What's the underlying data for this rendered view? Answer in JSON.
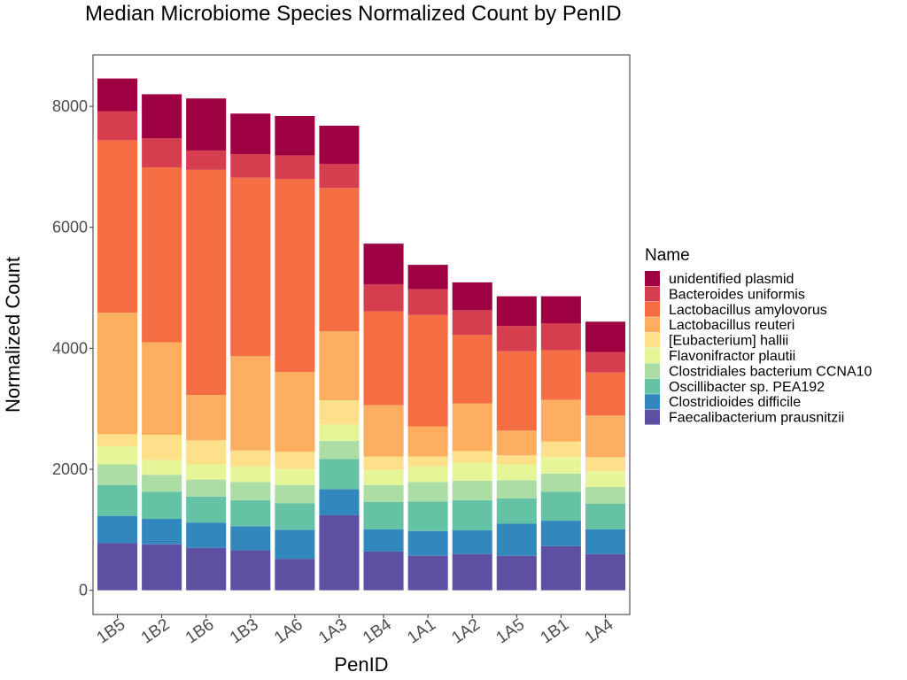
{
  "chart_data": {
    "type": "bar",
    "stacked": true,
    "title": "Median Microbiome Species Normalized Count by PenID",
    "xlabel": "PenID",
    "ylabel": "Normalized Count",
    "ylim": [
      -400,
      8850
    ],
    "yticks": [
      0,
      2000,
      4000,
      6000,
      8000
    ],
    "grid": false,
    "legend_title": "Name",
    "legend_position": "right",
    "categories": [
      "1B5",
      "1B2",
      "1B6",
      "1B3",
      "1A6",
      "1A3",
      "1B4",
      "1A1",
      "1A2",
      "1A5",
      "1B1",
      "1A4"
    ],
    "series": [
      {
        "name": "Faecalibacterium prausnitzii",
        "color": "#5E4FA2",
        "values": [
          780,
          760,
          700,
          660,
          520,
          1240,
          640,
          570,
          600,
          570,
          730,
          600
        ]
      },
      {
        "name": "Clostridioides difficile",
        "color": "#3288BD",
        "values": [
          450,
          420,
          420,
          400,
          480,
          430,
          370,
          410,
          390,
          530,
          420,
          410
        ]
      },
      {
        "name": "Oscillibacter sp. PEA192",
        "color": "#66C2A5",
        "values": [
          510,
          450,
          430,
          430,
          440,
          500,
          450,
          490,
          500,
          420,
          480,
          420
        ]
      },
      {
        "name": "Clostridiales bacterium CCNA10",
        "color": "#ABDDA4",
        "values": [
          340,
          280,
          280,
          300,
          300,
          300,
          280,
          320,
          320,
          300,
          300,
          280
        ]
      },
      {
        "name": "Flavonifractor plautii",
        "color": "#E6F598",
        "values": [
          300,
          240,
          250,
          260,
          270,
          270,
          250,
          260,
          300,
          260,
          270,
          260
        ]
      },
      {
        "name": "[Eubacterium] hallii",
        "color": "#FEE08B",
        "values": [
          200,
          420,
          400,
          260,
          280,
          400,
          220,
          160,
          190,
          150,
          260,
          230
        ]
      },
      {
        "name": "Lactobacillus reuteri",
        "color": "#FDAE61",
        "values": [
          2010,
          1530,
          750,
          1560,
          1320,
          1140,
          850,
          500,
          790,
          410,
          690,
          690
        ]
      },
      {
        "name": "Lactobacillus amylovorus",
        "color": "#F46D43",
        "values": [
          2850,
          2890,
          3720,
          2950,
          3190,
          2370,
          1550,
          1840,
          1130,
          1310,
          820,
          710
        ]
      },
      {
        "name": "Bacteroides uniformis",
        "color": "#D53E4F",
        "values": [
          480,
          480,
          320,
          390,
          390,
          400,
          450,
          430,
          410,
          420,
          440,
          340
        ]
      },
      {
        "name": "unidentified plasmid",
        "color": "#9E0142",
        "values": [
          540,
          730,
          860,
          670,
          650,
          630,
          670,
          400,
          460,
          490,
          450,
          500
        ]
      }
    ]
  }
}
